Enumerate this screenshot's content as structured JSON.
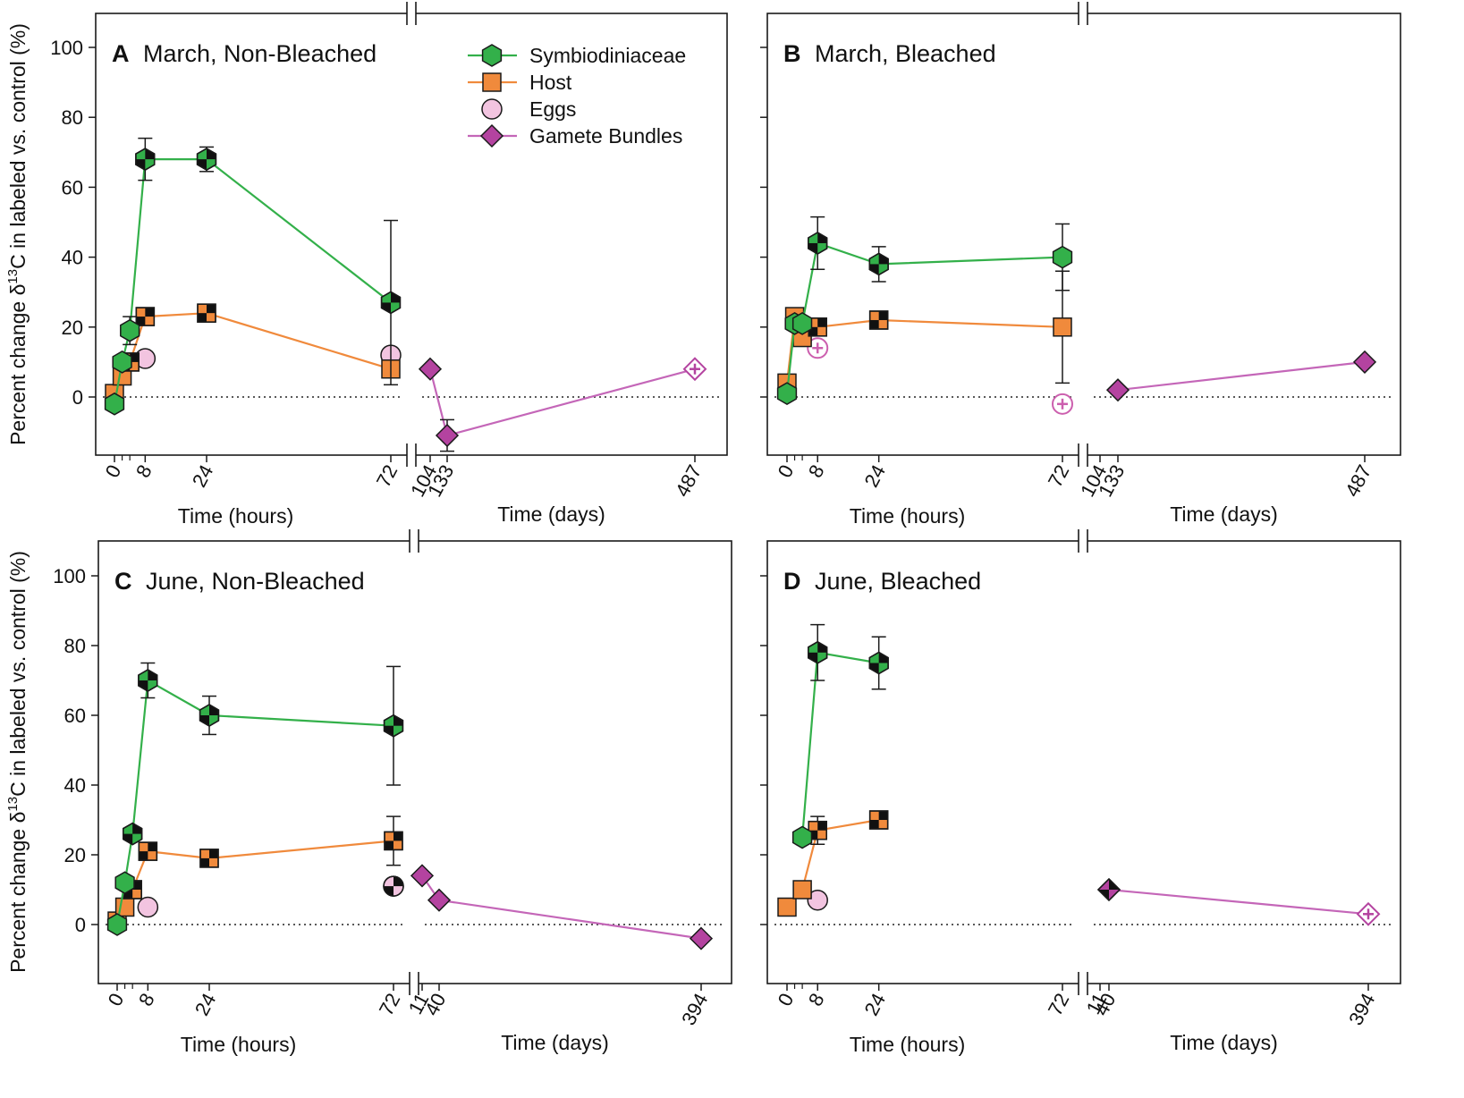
{
  "figure": {
    "ylabel": "Percent change δ13C in labeled vs. control (%)",
    "xlabel_hours": "Time (hours)",
    "xlabel_days": "Time (days)",
    "yticks": [
      "0",
      "20",
      "40",
      "60",
      "80",
      "100"
    ]
  },
  "colors": {
    "symbiodiniaceae": "#33b04a",
    "host": "#f08a3c",
    "eggs": "#f2c4e0",
    "eggs_stroke": "#cc5fae",
    "gamete_bundles": "#b443a0",
    "gamete_line": "#c466b8"
  },
  "legend": {
    "symbiodiniaceae": "Symbiodiniaceae",
    "host": "Host",
    "eggs": "Eggs",
    "gamete_bundles": "Gamete Bundles"
  },
  "chart_data": [
    {
      "panel": "A",
      "title": "March, Non-Bleached",
      "type": "line",
      "ylim": [
        -15,
        105
      ],
      "hour_ticks": [
        "0",
        "8",
        "24",
        "72"
      ],
      "day_ticks": [
        "104",
        "133",
        "487"
      ],
      "series": [
        {
          "name": "Symbiodiniaceae",
          "key": "symbiodiniaceae",
          "axis": "hours",
          "marker": "hexagon",
          "points": [
            {
              "x": 0,
              "y": -2,
              "sig": "none"
            },
            {
              "x": 2,
              "y": 10,
              "sig": "none"
            },
            {
              "x": 4,
              "y": 19,
              "err": 4,
              "sig": "none"
            },
            {
              "x": 8,
              "y": 68,
              "err": 6,
              "sig": "check"
            },
            {
              "x": 24,
              "y": 68,
              "err": 3.5,
              "sig": "check"
            },
            {
              "x": 72,
              "y": 27,
              "err": 23.5,
              "sig": "check"
            }
          ]
        },
        {
          "name": "Host",
          "key": "host",
          "axis": "hours",
          "marker": "square",
          "points": [
            {
              "x": 0,
              "y": 1,
              "sig": "none"
            },
            {
              "x": 2,
              "y": 6,
              "sig": "none"
            },
            {
              "x": 4,
              "y": 10,
              "sig": "check"
            },
            {
              "x": 8,
              "y": 23,
              "sig": "check"
            },
            {
              "x": 24,
              "y": 24,
              "sig": "check"
            },
            {
              "x": 72,
              "y": 8,
              "sig": "none"
            }
          ]
        },
        {
          "name": "Eggs",
          "key": "eggs",
          "axis": "hours",
          "marker": "circle",
          "points": [
            {
              "x": 8,
              "y": 11,
              "sig": "none"
            },
            {
              "x": 72,
              "y": 12,
              "sig": "none"
            }
          ]
        },
        {
          "name": "Gamete Bundles",
          "key": "gamete_bundles",
          "axis": "days",
          "marker": "diamond",
          "points": [
            {
              "x": 104,
              "y": 8,
              "sig": "none"
            },
            {
              "x": 133,
              "y": -11,
              "err": 4.5,
              "sig": "none"
            },
            {
              "x": 487,
              "y": 8,
              "sig": "plus"
            }
          ]
        }
      ]
    },
    {
      "panel": "B",
      "title": "March, Bleached",
      "type": "line",
      "ylim": [
        -15,
        105
      ],
      "hour_ticks": [
        "0",
        "8",
        "24",
        "72"
      ],
      "day_ticks": [
        "104",
        "133",
        "487"
      ],
      "series": [
        {
          "name": "Symbiodiniaceae",
          "key": "symbiodiniaceae",
          "axis": "hours",
          "marker": "hexagon",
          "points": [
            {
              "x": 0,
              "y": 1,
              "sig": "none"
            },
            {
              "x": 2,
              "y": 21,
              "sig": "none"
            },
            {
              "x": 4,
              "y": 21,
              "sig": "none"
            },
            {
              "x": 8,
              "y": 44,
              "err": 7.5,
              "sig": "check"
            },
            {
              "x": 24,
              "y": 38,
              "err": 5,
              "sig": "check"
            },
            {
              "x": 72,
              "y": 40,
              "err": 9.5,
              "sig": "none"
            }
          ]
        },
        {
          "name": "Host",
          "key": "host",
          "axis": "hours",
          "marker": "square",
          "points": [
            {
              "x": 0,
              "y": 4,
              "sig": "none"
            },
            {
              "x": 2,
              "y": 23,
              "sig": "none"
            },
            {
              "x": 4,
              "y": 17,
              "sig": "none"
            },
            {
              "x": 8,
              "y": 20,
              "sig": "check"
            },
            {
              "x": 24,
              "y": 22,
              "sig": "check"
            },
            {
              "x": 72,
              "y": 20,
              "err": 16,
              "sig": "none"
            }
          ]
        },
        {
          "name": "Eggs",
          "key": "eggs",
          "axis": "hours",
          "marker": "circle",
          "points": [
            {
              "x": 8,
              "y": 14,
              "sig": "plus"
            },
            {
              "x": 72,
              "y": -2,
              "sig": "plus"
            }
          ]
        },
        {
          "name": "Gamete Bundles",
          "key": "gamete_bundles",
          "axis": "days",
          "marker": "diamond",
          "points": [
            {
              "x": 133,
              "y": 2,
              "sig": "none"
            },
            {
              "x": 487,
              "y": 10,
              "sig": "none"
            }
          ]
        }
      ]
    },
    {
      "panel": "C",
      "title": "June, Non-Bleached",
      "type": "line",
      "ylim": [
        -17,
        105
      ],
      "hour_ticks": [
        "0",
        "8",
        "24",
        "72"
      ],
      "day_ticks": [
        "11",
        "40",
        "394"
      ],
      "series": [
        {
          "name": "Symbiodiniaceae",
          "key": "symbiodiniaceae",
          "axis": "hours",
          "marker": "hexagon",
          "points": [
            {
              "x": 0,
              "y": 0,
              "sig": "none"
            },
            {
              "x": 2,
              "y": 12,
              "sig": "none"
            },
            {
              "x": 4,
              "y": 26,
              "sig": "check"
            },
            {
              "x": 8,
              "y": 70,
              "err": 5,
              "sig": "check"
            },
            {
              "x": 24,
              "y": 60,
              "err": 5.5,
              "sig": "check"
            },
            {
              "x": 72,
              "y": 57,
              "err": 17,
              "sig": "check"
            }
          ]
        },
        {
          "name": "Host",
          "key": "host",
          "axis": "hours",
          "marker": "square",
          "points": [
            {
              "x": 0,
              "y": 1,
              "sig": "none"
            },
            {
              "x": 2,
              "y": 5,
              "sig": "none"
            },
            {
              "x": 4,
              "y": 10,
              "sig": "check"
            },
            {
              "x": 8,
              "y": 21,
              "sig": "check"
            },
            {
              "x": 24,
              "y": 19,
              "sig": "check"
            },
            {
              "x": 72,
              "y": 24,
              "err": 7,
              "sig": "check"
            }
          ]
        },
        {
          "name": "Eggs",
          "key": "eggs",
          "axis": "hours",
          "marker": "circle",
          "points": [
            {
              "x": 8,
              "y": 5,
              "sig": "none"
            },
            {
              "x": 72,
              "y": 11,
              "sig": "check"
            }
          ]
        },
        {
          "name": "Gamete Bundles",
          "key": "gamete_bundles",
          "axis": "days",
          "marker": "diamond",
          "points": [
            {
              "x": 11,
              "y": 14,
              "sig": "none"
            },
            {
              "x": 40,
              "y": 7,
              "sig": "none"
            },
            {
              "x": 394,
              "y": -4,
              "sig": "none"
            }
          ]
        }
      ]
    },
    {
      "panel": "D",
      "title": "June, Bleached",
      "type": "line",
      "ylim": [
        -17,
        105
      ],
      "hour_ticks": [
        "0",
        "8",
        "24",
        "72"
      ],
      "day_ticks": [
        "11",
        "40",
        "394"
      ],
      "series": [
        {
          "name": "Symbiodiniaceae",
          "key": "symbiodiniaceae",
          "axis": "hours",
          "marker": "hexagon",
          "points": [
            {
              "x": 4,
              "y": 25,
              "sig": "none"
            },
            {
              "x": 8,
              "y": 78,
              "err": 8,
              "sig": "check"
            },
            {
              "x": 24,
              "y": 75,
              "err": 7.5,
              "sig": "check"
            }
          ]
        },
        {
          "name": "Host",
          "key": "host",
          "axis": "hours",
          "marker": "square",
          "points": [
            {
              "x": 0,
              "y": 5,
              "sig": "none"
            },
            {
              "x": 4,
              "y": 10,
              "sig": "none"
            },
            {
              "x": 8,
              "y": 27,
              "err": 4,
              "sig": "check"
            },
            {
              "x": 24,
              "y": 30,
              "sig": "check"
            }
          ]
        },
        {
          "name": "Eggs",
          "key": "eggs",
          "axis": "hours",
          "marker": "circle",
          "points": [
            {
              "x": 8,
              "y": 7,
              "sig": "none"
            }
          ]
        },
        {
          "name": "Gamete Bundles",
          "key": "gamete_bundles",
          "axis": "days",
          "marker": "diamond",
          "points": [
            {
              "x": 40,
              "y": 10,
              "sig": "check"
            },
            {
              "x": 394,
              "y": 3,
              "sig": "plus"
            }
          ]
        }
      ]
    }
  ]
}
